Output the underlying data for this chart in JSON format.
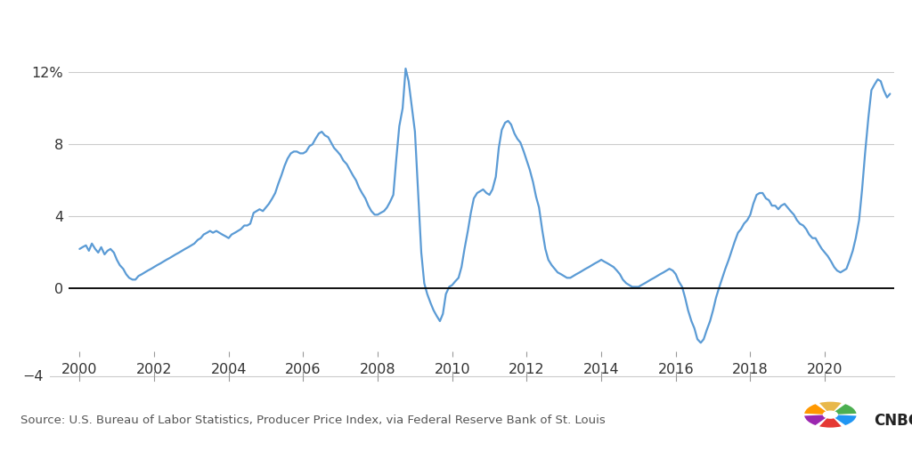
{
  "source_text": "Source: U.S. Bureau of Labor Statistics, Producer Price Index, via Federal Reserve Bank of St. Louis",
  "line_color": "#5b9bd5",
  "background_color": "#ffffff",
  "ylim": [
    -4.5,
    13.5
  ],
  "plot_ymin": -2.5,
  "plot_ymax": 13.0,
  "yticks": [
    0,
    4,
    8,
    12
  ],
  "ytick_labels": [
    "0",
    "4",
    "8",
    "12%"
  ],
  "bottom_tick": -4,
  "xlim_start": 1999.7,
  "xlim_end": 2021.85,
  "xticks": [
    2000,
    2002,
    2004,
    2006,
    2008,
    2010,
    2012,
    2014,
    2016,
    2018,
    2020
  ],
  "zero_line_color": "#000000",
  "grid_color": "#cccccc",
  "line_width": 1.6,
  "data": {
    "x": [
      2000.0,
      2000.08,
      2000.17,
      2000.25,
      2000.33,
      2000.42,
      2000.5,
      2000.58,
      2000.67,
      2000.75,
      2000.83,
      2000.92,
      2001.0,
      2001.08,
      2001.17,
      2001.25,
      2001.33,
      2001.42,
      2001.5,
      2001.58,
      2001.67,
      2001.75,
      2001.83,
      2001.92,
      2002.0,
      2002.08,
      2002.17,
      2002.25,
      2002.33,
      2002.42,
      2002.5,
      2002.58,
      2002.67,
      2002.75,
      2002.83,
      2002.92,
      2003.0,
      2003.08,
      2003.17,
      2003.25,
      2003.33,
      2003.42,
      2003.5,
      2003.58,
      2003.67,
      2003.75,
      2003.83,
      2003.92,
      2004.0,
      2004.08,
      2004.17,
      2004.25,
      2004.33,
      2004.42,
      2004.5,
      2004.58,
      2004.67,
      2004.75,
      2004.83,
      2004.92,
      2005.0,
      2005.08,
      2005.17,
      2005.25,
      2005.33,
      2005.42,
      2005.5,
      2005.58,
      2005.67,
      2005.75,
      2005.83,
      2005.92,
      2006.0,
      2006.08,
      2006.17,
      2006.25,
      2006.33,
      2006.42,
      2006.5,
      2006.58,
      2006.67,
      2006.75,
      2006.83,
      2006.92,
      2007.0,
      2007.08,
      2007.17,
      2007.25,
      2007.33,
      2007.42,
      2007.5,
      2007.58,
      2007.67,
      2007.75,
      2007.83,
      2007.92,
      2008.0,
      2008.08,
      2008.17,
      2008.25,
      2008.33,
      2008.42,
      2008.5,
      2008.58,
      2008.67,
      2008.75,
      2008.83,
      2008.92,
      2009.0,
      2009.08,
      2009.17,
      2009.25,
      2009.33,
      2009.42,
      2009.5,
      2009.58,
      2009.67,
      2009.75,
      2009.83,
      2009.92,
      2010.0,
      2010.08,
      2010.17,
      2010.25,
      2010.33,
      2010.42,
      2010.5,
      2010.58,
      2010.67,
      2010.75,
      2010.83,
      2010.92,
      2011.0,
      2011.08,
      2011.17,
      2011.25,
      2011.33,
      2011.42,
      2011.5,
      2011.58,
      2011.67,
      2011.75,
      2011.83,
      2011.92,
      2012.0,
      2012.08,
      2012.17,
      2012.25,
      2012.33,
      2012.42,
      2012.5,
      2012.58,
      2012.67,
      2012.75,
      2012.83,
      2012.92,
      2013.0,
      2013.08,
      2013.17,
      2013.25,
      2013.33,
      2013.42,
      2013.5,
      2013.58,
      2013.67,
      2013.75,
      2013.83,
      2013.92,
      2014.0,
      2014.08,
      2014.17,
      2014.25,
      2014.33,
      2014.42,
      2014.5,
      2014.58,
      2014.67,
      2014.75,
      2014.83,
      2014.92,
      2015.0,
      2015.08,
      2015.17,
      2015.25,
      2015.33,
      2015.42,
      2015.5,
      2015.58,
      2015.67,
      2015.75,
      2015.83,
      2015.92,
      2016.0,
      2016.08,
      2016.17,
      2016.25,
      2016.33,
      2016.42,
      2016.5,
      2016.58,
      2016.67,
      2016.75,
      2016.83,
      2016.92,
      2017.0,
      2017.08,
      2017.17,
      2017.25,
      2017.33,
      2017.42,
      2017.5,
      2017.58,
      2017.67,
      2017.75,
      2017.83,
      2017.92,
      2018.0,
      2018.08,
      2018.17,
      2018.25,
      2018.33,
      2018.42,
      2018.5,
      2018.58,
      2018.67,
      2018.75,
      2018.83,
      2018.92,
      2019.0,
      2019.08,
      2019.17,
      2019.25,
      2019.33,
      2019.42,
      2019.5,
      2019.58,
      2019.67,
      2019.75,
      2019.83,
      2019.92,
      2020.0,
      2020.08,
      2020.17,
      2020.25,
      2020.33,
      2020.42,
      2020.5,
      2020.58,
      2020.67,
      2020.75,
      2020.83,
      2020.92,
      2021.0,
      2021.08,
      2021.17,
      2021.25,
      2021.33,
      2021.42,
      2021.5,
      2021.58,
      2021.67,
      2021.75
    ],
    "y": [
      2.2,
      2.3,
      2.4,
      2.1,
      2.5,
      2.2,
      2.0,
      2.3,
      1.9,
      2.1,
      2.2,
      2.0,
      1.6,
      1.3,
      1.1,
      0.8,
      0.6,
      0.5,
      0.5,
      0.7,
      0.8,
      0.9,
      1.0,
      1.1,
      1.2,
      1.3,
      1.4,
      1.5,
      1.6,
      1.7,
      1.8,
      1.9,
      2.0,
      2.1,
      2.2,
      2.3,
      2.4,
      2.5,
      2.7,
      2.8,
      3.0,
      3.1,
      3.2,
      3.1,
      3.2,
      3.1,
      3.0,
      2.9,
      2.8,
      3.0,
      3.1,
      3.2,
      3.3,
      3.5,
      3.5,
      3.6,
      4.2,
      4.3,
      4.4,
      4.3,
      4.5,
      4.7,
      5.0,
      5.3,
      5.8,
      6.3,
      6.8,
      7.2,
      7.5,
      7.6,
      7.6,
      7.5,
      7.5,
      7.6,
      7.9,
      8.0,
      8.3,
      8.6,
      8.7,
      8.5,
      8.4,
      8.1,
      7.8,
      7.6,
      7.4,
      7.1,
      6.9,
      6.6,
      6.3,
      6.0,
      5.6,
      5.3,
      5.0,
      4.6,
      4.3,
      4.1,
      4.1,
      4.2,
      4.3,
      4.5,
      4.8,
      5.2,
      7.2,
      9.0,
      10.0,
      12.2,
      11.5,
      10.0,
      8.7,
      5.5,
      2.0,
      0.3,
      -0.3,
      -0.8,
      -1.2,
      -1.5,
      -1.8,
      -1.4,
      -0.3,
      0.1,
      0.2,
      0.4,
      0.6,
      1.2,
      2.2,
      3.2,
      4.2,
      5.0,
      5.3,
      5.4,
      5.5,
      5.3,
      5.2,
      5.5,
      6.2,
      7.8,
      8.8,
      9.2,
      9.3,
      9.1,
      8.6,
      8.3,
      8.1,
      7.6,
      7.1,
      6.6,
      5.9,
      5.1,
      4.5,
      3.2,
      2.2,
      1.6,
      1.3,
      1.1,
      0.9,
      0.8,
      0.7,
      0.6,
      0.6,
      0.7,
      0.8,
      0.9,
      1.0,
      1.1,
      1.2,
      1.3,
      1.4,
      1.5,
      1.6,
      1.5,
      1.4,
      1.3,
      1.2,
      1.0,
      0.8,
      0.5,
      0.3,
      0.2,
      0.1,
      0.1,
      0.1,
      0.2,
      0.3,
      0.4,
      0.5,
      0.6,
      0.7,
      0.8,
      0.9,
      1.0,
      1.1,
      1.0,
      0.8,
      0.4,
      0.1,
      -0.5,
      -1.2,
      -1.8,
      -2.2,
      -2.8,
      -3.0,
      -2.8,
      -2.3,
      -1.8,
      -1.2,
      -0.5,
      0.1,
      0.6,
      1.1,
      1.6,
      2.1,
      2.6,
      3.1,
      3.3,
      3.6,
      3.8,
      4.1,
      4.7,
      5.2,
      5.3,
      5.3,
      5.0,
      4.9,
      4.6,
      4.6,
      4.4,
      4.6,
      4.7,
      4.5,
      4.3,
      4.1,
      3.8,
      3.6,
      3.5,
      3.3,
      3.0,
      2.8,
      2.8,
      2.5,
      2.2,
      2.0,
      1.8,
      1.5,
      1.2,
      1.0,
      0.9,
      1.0,
      1.1,
      1.6,
      2.1,
      2.8,
      3.8,
      5.5,
      7.5,
      9.5,
      11.0,
      11.3,
      11.6,
      11.5,
      11.0,
      10.6,
      10.8
    ]
  }
}
